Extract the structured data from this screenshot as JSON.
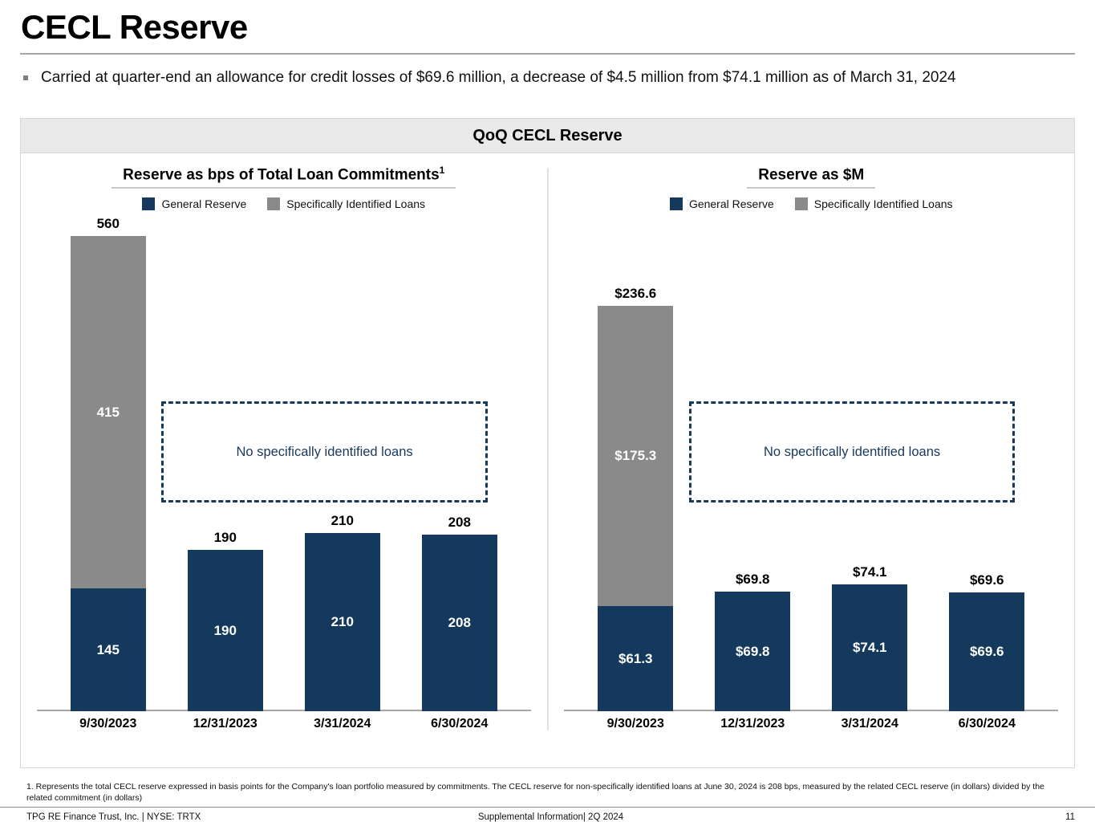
{
  "title": "CECL Reserve",
  "bullet": "Carried at quarter-end an allowance for credit losses of $69.6 million, a decrease of $4.5 million from $74.1 million as of March 31, 2024",
  "panel_title": "QoQ CECL Reserve",
  "colors": {
    "general_reserve": "#14395c",
    "specifically_identified_loans": "#8a8a8a",
    "annotation_border": "#17395c"
  },
  "chart_data": [
    {
      "type": "bar",
      "stacked": true,
      "title": "Reserve as bps of Total Loan Commitments",
      "title_sup": "1",
      "legend_position": "top",
      "grid": false,
      "categories": [
        "9/30/2023",
        "12/31/2023",
        "3/31/2024",
        "6/30/2024"
      ],
      "series": [
        {
          "name": "General Reserve",
          "color": "#14395c",
          "values": [
            145,
            190,
            210,
            208
          ],
          "labels": [
            "145",
            "190",
            "210",
            "208"
          ]
        },
        {
          "name": "Specifically Identified Loans",
          "color": "#8a8a8a",
          "values": [
            415,
            0,
            0,
            0
          ],
          "labels": [
            "415",
            "",
            "",
            ""
          ]
        }
      ],
      "totals": [
        "560",
        "190",
        "210",
        "208"
      ],
      "ylim": [
        0,
        575
      ],
      "annotation": "No specifically identified loans"
    },
    {
      "type": "bar",
      "stacked": true,
      "title": "Reserve as $M",
      "legend_position": "top",
      "grid": false,
      "categories": [
        "9/30/2023",
        "12/31/2023",
        "3/31/2024",
        "6/30/2024"
      ],
      "series": [
        {
          "name": "General Reserve",
          "color": "#14395c",
          "values": [
            61.3,
            69.8,
            74.1,
            69.6
          ],
          "labels": [
            "$61.3",
            "$69.8",
            "$74.1",
            "$69.6"
          ]
        },
        {
          "name": "Specifically Identified Loans",
          "color": "#8a8a8a",
          "values": [
            175.3,
            0,
            0,
            0
          ],
          "labels": [
            "$175.3",
            "",
            "",
            ""
          ]
        }
      ],
      "totals": [
        "$236.6",
        "$69.8",
        "$74.1",
        "$69.6"
      ],
      "ylim": [
        0,
        285
      ],
      "annotation": "No specifically identified loans"
    }
  ],
  "footnote": "1. Represents the total CECL reserve expressed in basis points for the Company's  loan portfolio measured by commitments.  The CECL reserve for non-specifically identified  loans at June 30, 2024 is 208 bps, measured by the related CECL reserve (in dollars) divided by the related commitment (in dollars)",
  "footer": {
    "left": "TPG RE Finance Trust, Inc. | NYSE: TRTX",
    "center": "Supplemental Information| 2Q 2024",
    "page": "11"
  }
}
